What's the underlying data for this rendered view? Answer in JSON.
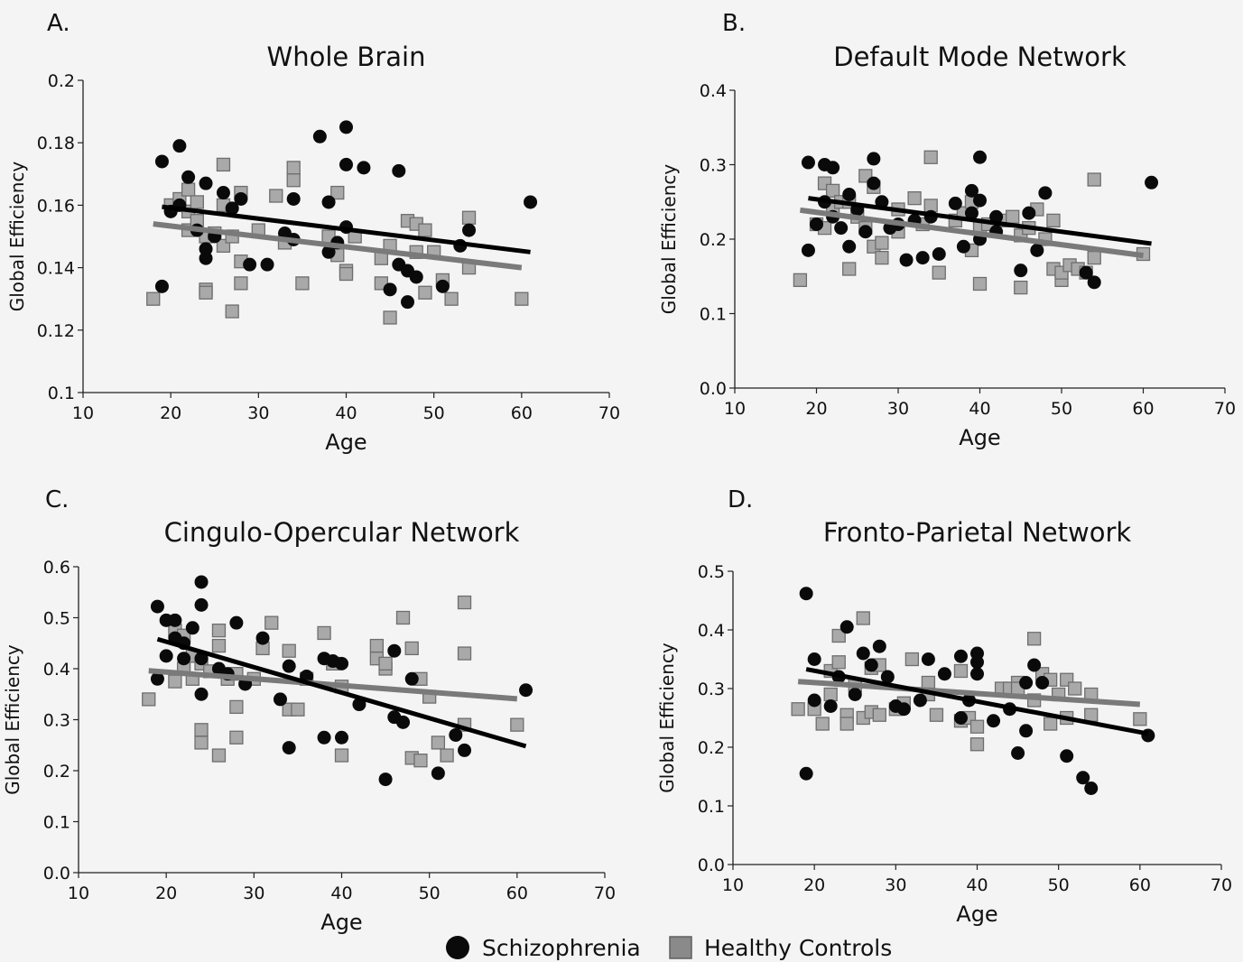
{
  "legend": {
    "items": [
      {
        "label": "Schizophrenia",
        "marker": "circle",
        "color": "#0a0a0a"
      },
      {
        "label": "Healthy Controls",
        "marker": "square",
        "color": "#8a8a8a"
      }
    ]
  },
  "colors": {
    "schizophrenia_fill": "#0a0a0a",
    "controls_fill": "#a9a9a9",
    "controls_stroke": "#6e6e6e",
    "controls_line": "#7a7a7a",
    "schizophrenia_line": "#000000"
  },
  "chart_data": [
    {
      "type": "scatter",
      "panel_label": "A.",
      "title": "Whole Brain",
      "xlabel": "Age",
      "ylabel": "Global Efficiency",
      "xlim": [
        10,
        70
      ],
      "ylim": [
        0.1,
        0.2
      ],
      "xticks": [
        "10",
        "20",
        "30",
        "40",
        "50",
        "60",
        "70"
      ],
      "yticks": [
        "0.1",
        "0.12",
        "0.14",
        "0.16",
        "0.18",
        "0.2"
      ],
      "grid": false,
      "series": [
        {
          "name": "Schizophrenia",
          "marker": "circle",
          "x": [
            19,
            19,
            20,
            21,
            21,
            22,
            23,
            24,
            24,
            24,
            25,
            26,
            27,
            28,
            29,
            31,
            33,
            34,
            34,
            37,
            38,
            38,
            39,
            40,
            40,
            40,
            42,
            45,
            46,
            46,
            47,
            47,
            48,
            51,
            53,
            54,
            61
          ],
          "y": [
            0.174,
            0.134,
            0.158,
            0.179,
            0.16,
            0.169,
            0.152,
            0.167,
            0.146,
            0.143,
            0.15,
            0.164,
            0.159,
            0.162,
            0.141,
            0.141,
            0.151,
            0.162,
            0.149,
            0.182,
            0.161,
            0.145,
            0.148,
            0.185,
            0.173,
            0.153,
            0.172,
            0.133,
            0.171,
            0.141,
            0.139,
            0.129,
            0.137,
            0.134,
            0.147,
            0.152,
            0.161
          ]
        },
        {
          "name": "Healthy Controls",
          "marker": "square",
          "x": [
            18,
            20,
            21,
            22,
            22,
            22,
            23,
            23,
            24,
            24,
            24,
            25,
            26,
            26,
            26,
            27,
            27,
            28,
            28,
            28,
            30,
            32,
            33,
            34,
            34,
            35,
            38,
            39,
            39,
            40,
            40,
            41,
            44,
            44,
            45,
            45,
            47,
            48,
            48,
            49,
            49,
            50,
            51,
            52,
            54,
            54,
            60
          ],
          "y": [
            0.13,
            0.16,
            0.162,
            0.158,
            0.152,
            0.165,
            0.161,
            0.155,
            0.133,
            0.132,
            0.15,
            0.151,
            0.173,
            0.147,
            0.16,
            0.126,
            0.15,
            0.142,
            0.135,
            0.164,
            0.152,
            0.163,
            0.148,
            0.172,
            0.168,
            0.135,
            0.15,
            0.164,
            0.144,
            0.139,
            0.138,
            0.15,
            0.135,
            0.143,
            0.124,
            0.147,
            0.155,
            0.154,
            0.145,
            0.132,
            0.152,
            0.145,
            0.136,
            0.13,
            0.156,
            0.14,
            0.13
          ]
        }
      ],
      "fit_lines": [
        {
          "name": "Schizophrenia",
          "x": [
            19,
            61
          ],
          "y": [
            0.1595,
            0.145
          ]
        },
        {
          "name": "Healthy Controls",
          "x": [
            18,
            60
          ],
          "y": [
            0.154,
            0.14
          ]
        }
      ]
    },
    {
      "type": "scatter",
      "panel_label": "B.",
      "title": "Default Mode Network",
      "xlabel": "Age",
      "ylabel": "Global Efficiency",
      "xlim": [
        10,
        70
      ],
      "ylim": [
        0.0,
        0.4
      ],
      "xticks": [
        "10",
        "20",
        "30",
        "40",
        "50",
        "60",
        "70"
      ],
      "yticks": [
        "0.0",
        "0.1",
        "0.2",
        "0.3",
        "0.4"
      ],
      "grid": false,
      "series": [
        {
          "name": "Schizophrenia",
          "marker": "circle",
          "x": [
            19,
            19,
            20,
            21,
            21,
            22,
            22,
            23,
            24,
            24,
            25,
            26,
            27,
            27,
            28,
            29,
            30,
            31,
            32,
            33,
            34,
            35,
            37,
            38,
            39,
            39,
            40,
            40,
            40,
            42,
            42,
            45,
            46,
            47,
            48,
            53,
            54,
            61
          ],
          "y": [
            0.303,
            0.185,
            0.22,
            0.3,
            0.25,
            0.296,
            0.23,
            0.215,
            0.26,
            0.19,
            0.24,
            0.21,
            0.308,
            0.275,
            0.25,
            0.215,
            0.22,
            0.172,
            0.225,
            0.175,
            0.23,
            0.18,
            0.248,
            0.19,
            0.265,
            0.235,
            0.31,
            0.252,
            0.2,
            0.23,
            0.21,
            0.158,
            0.235,
            0.185,
            0.262,
            0.155,
            0.142,
            0.276
          ]
        },
        {
          "name": "Healthy Controls",
          "marker": "square",
          "x": [
            18,
            20,
            21,
            21,
            22,
            22,
            23,
            24,
            24,
            25,
            26,
            26,
            27,
            27,
            28,
            28,
            30,
            30,
            32,
            33,
            34,
            34,
            35,
            37,
            38,
            39,
            39,
            40,
            40,
            41,
            43,
            44,
            45,
            45,
            46,
            47,
            48,
            49,
            49,
            50,
            50,
            51,
            52,
            53,
            54,
            54,
            60
          ],
          "y": [
            0.145,
            0.22,
            0.275,
            0.215,
            0.265,
            0.24,
            0.25,
            0.16,
            0.25,
            0.23,
            0.285,
            0.215,
            0.19,
            0.27,
            0.175,
            0.195,
            0.21,
            0.24,
            0.255,
            0.22,
            0.31,
            0.245,
            0.155,
            0.225,
            0.235,
            0.25,
            0.185,
            0.14,
            0.215,
            0.22,
            0.225,
            0.23,
            0.135,
            0.205,
            0.215,
            0.24,
            0.2,
            0.16,
            0.225,
            0.145,
            0.155,
            0.165,
            0.16,
            0.155,
            0.28,
            0.175,
            0.18
          ]
        }
      ],
      "fit_lines": [
        {
          "name": "Schizophrenia",
          "x": [
            19,
            61
          ],
          "y": [
            0.255,
            0.194
          ]
        },
        {
          "name": "Healthy Controls",
          "x": [
            18,
            60
          ],
          "y": [
            0.239,
            0.178
          ]
        }
      ]
    },
    {
      "type": "scatter",
      "panel_label": "C.",
      "title": "Cingulo-Opercular Network",
      "xlabel": "Age",
      "ylabel": "Global Efficiency",
      "xlim": [
        10,
        70
      ],
      "ylim": [
        0.0,
        0.6
      ],
      "xticks": [
        "10",
        "20",
        "30",
        "40",
        "50",
        "60",
        "70"
      ],
      "yticks": [
        "0.0",
        "0.1",
        "0.2",
        "0.3",
        "0.4",
        "0.5",
        "0.6"
      ],
      "grid": false,
      "series": [
        {
          "name": "Schizophrenia",
          "marker": "circle",
          "x": [
            19,
            19,
            20,
            20,
            21,
            21,
            22,
            22,
            23,
            24,
            24,
            24,
            24,
            26,
            27,
            28,
            29,
            31,
            33,
            34,
            34,
            36,
            38,
            38,
            39,
            40,
            40,
            42,
            45,
            46,
            46,
            47,
            48,
            51,
            53,
            54,
            61
          ],
          "y": [
            0.522,
            0.38,
            0.495,
            0.425,
            0.495,
            0.46,
            0.45,
            0.42,
            0.48,
            0.57,
            0.525,
            0.42,
            0.35,
            0.4,
            0.39,
            0.49,
            0.37,
            0.46,
            0.34,
            0.405,
            0.245,
            0.385,
            0.42,
            0.265,
            0.415,
            0.41,
            0.265,
            0.33,
            0.183,
            0.435,
            0.305,
            0.295,
            0.38,
            0.195,
            0.27,
            0.24,
            0.358
          ]
        },
        {
          "name": "Healthy Controls",
          "marker": "square",
          "x": [
            18,
            21,
            21,
            22,
            22,
            23,
            23,
            24,
            24,
            24,
            25,
            26,
            26,
            26,
            27,
            28,
            28,
            28,
            30,
            31,
            32,
            34,
            34,
            35,
            36,
            38,
            39,
            40,
            40,
            44,
            44,
            45,
            45,
            47,
            48,
            48,
            49,
            49,
            50,
            51,
            52,
            54,
            54,
            54,
            60
          ],
          "y": [
            0.34,
            0.475,
            0.375,
            0.4,
            0.465,
            0.38,
            0.425,
            0.28,
            0.255,
            0.41,
            0.395,
            0.475,
            0.445,
            0.23,
            0.38,
            0.325,
            0.265,
            0.39,
            0.38,
            0.44,
            0.49,
            0.435,
            0.32,
            0.32,
            0.38,
            0.47,
            0.41,
            0.365,
            0.23,
            0.445,
            0.42,
            0.4,
            0.41,
            0.5,
            0.44,
            0.225,
            0.38,
            0.22,
            0.345,
            0.255,
            0.23,
            0.53,
            0.43,
            0.29,
            0.29
          ]
        }
      ],
      "fit_lines": [
        {
          "name": "Schizophrenia",
          "x": [
            19,
            61
          ],
          "y": [
            0.458,
            0.248
          ]
        },
        {
          "name": "Healthy Controls",
          "x": [
            18,
            60
          ],
          "y": [
            0.396,
            0.341
          ]
        }
      ]
    },
    {
      "type": "scatter",
      "panel_label": "D.",
      "title": "Fronto-Parietal Network",
      "xlabel": "Age",
      "ylabel": "Global Efficiency",
      "xlim": [
        10,
        70
      ],
      "ylim": [
        0.0,
        0.5
      ],
      "xticks": [
        "10",
        "20",
        "30",
        "40",
        "50",
        "60",
        "70"
      ],
      "yticks": [
        "0.0",
        "0.1",
        "0.2",
        "0.3",
        "0.4",
        "0.5"
      ],
      "grid": false,
      "series": [
        {
          "name": "Schizophrenia",
          "marker": "circle",
          "x": [
            19,
            19,
            20,
            20,
            22,
            23,
            24,
            25,
            26,
            27,
            28,
            29,
            30,
            31,
            33,
            34,
            36,
            38,
            38,
            39,
            40,
            40,
            40,
            42,
            44,
            45,
            46,
            46,
            47,
            48,
            51,
            53,
            54,
            61
          ],
          "y": [
            0.462,
            0.155,
            0.35,
            0.28,
            0.27,
            0.32,
            0.405,
            0.29,
            0.36,
            0.34,
            0.372,
            0.32,
            0.27,
            0.265,
            0.28,
            0.35,
            0.325,
            0.355,
            0.25,
            0.28,
            0.36,
            0.345,
            0.325,
            0.245,
            0.265,
            0.19,
            0.31,
            0.228,
            0.34,
            0.31,
            0.185,
            0.148,
            0.13,
            0.22
          ]
        },
        {
          "name": "Healthy Controls",
          "marker": "square",
          "x": [
            18,
            20,
            21,
            22,
            22,
            23,
            23,
            24,
            24,
            25,
            26,
            26,
            27,
            27,
            28,
            28,
            30,
            31,
            32,
            34,
            34,
            35,
            38,
            38,
            39,
            40,
            40,
            43,
            44,
            45,
            45,
            47,
            47,
            48,
            49,
            49,
            50,
            51,
            51,
            52,
            54,
            54,
            60
          ],
          "y": [
            0.265,
            0.265,
            0.24,
            0.33,
            0.29,
            0.345,
            0.39,
            0.255,
            0.24,
            0.305,
            0.42,
            0.25,
            0.335,
            0.26,
            0.34,
            0.255,
            0.265,
            0.275,
            0.35,
            0.31,
            0.29,
            0.255,
            0.33,
            0.245,
            0.25,
            0.235,
            0.205,
            0.3,
            0.3,
            0.31,
            0.3,
            0.385,
            0.28,
            0.325,
            0.315,
            0.24,
            0.29,
            0.315,
            0.25,
            0.3,
            0.29,
            0.255,
            0.248
          ]
        }
      ],
      "fit_lines": [
        {
          "name": "Schizophrenia",
          "x": [
            19,
            61
          ],
          "y": [
            0.333,
            0.223
          ]
        },
        {
          "name": "Healthy Controls",
          "x": [
            18,
            60
          ],
          "y": [
            0.312,
            0.273
          ]
        }
      ]
    }
  ]
}
